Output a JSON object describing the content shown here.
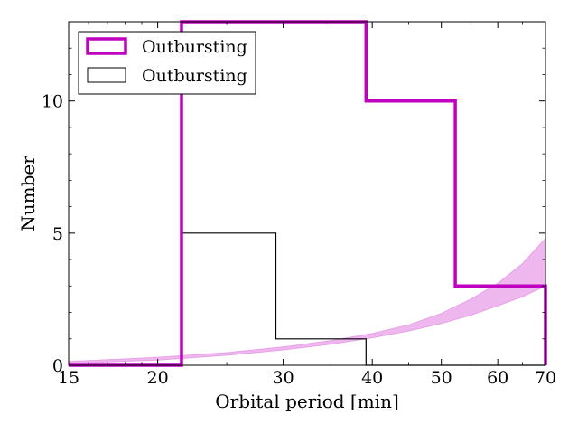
{
  "chart_data": {
    "type": "step-histogram",
    "xlabel": "Orbital period [min]",
    "ylabel": "Number",
    "xscale": "log",
    "xlim": [
      15,
      70
    ],
    "ylim": [
      0,
      13
    ],
    "x_ticks": [
      15,
      20,
      30,
      40,
      50,
      60,
      70
    ],
    "y_ticks": [
      0,
      5,
      10
    ],
    "grid": false,
    "legend_position": "top-left",
    "series": [
      {
        "name": "Outbursting",
        "color": "#bf00bf",
        "style": "thick-step",
        "bin_edges": [
          15,
          21.6,
          39.2,
          52.3,
          70
        ],
        "values": [
          0,
          13,
          10,
          3
        ]
      },
      {
        "name": "Outbursting",
        "color": "#000000",
        "style": "thin-step",
        "bin_edges": [
          15,
          21.6,
          29.3,
          39.2,
          70
        ],
        "values": [
          0,
          5,
          1,
          0
        ]
      }
    ],
    "band": {
      "color": "#e8a0e8",
      "x": [
        15,
        20,
        25,
        30,
        35,
        40,
        45,
        50,
        55,
        60,
        65,
        70
      ],
      "lower": [
        0.08,
        0.2,
        0.38,
        0.58,
        0.8,
        1.04,
        1.3,
        1.58,
        1.9,
        2.25,
        2.6,
        3.0
      ],
      "upper": [
        0.14,
        0.3,
        0.48,
        0.69,
        0.93,
        1.2,
        1.53,
        1.96,
        2.5,
        3.1,
        3.85,
        4.8
      ]
    }
  }
}
